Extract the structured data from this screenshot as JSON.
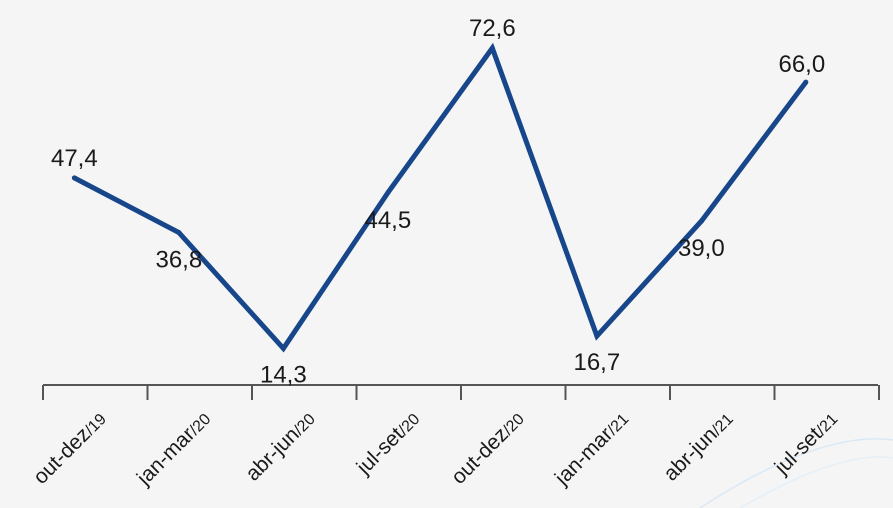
{
  "chart_data": {
    "type": "line",
    "categories": [
      {
        "main": "out-dez",
        "suffix": "/19"
      },
      {
        "main": "jan-mar",
        "suffix": "/20"
      },
      {
        "main": "abr-jun",
        "suffix": "/20"
      },
      {
        "main": "jul-set",
        "suffix": "/20"
      },
      {
        "main": "out-dez",
        "suffix": "/20"
      },
      {
        "main": "jan-mar",
        "suffix": "/21"
      },
      {
        "main": "abr-jun",
        "suffix": "/21"
      },
      {
        "main": "jul-set",
        "suffix": "/21"
      }
    ],
    "series": [
      {
        "values": [
          47.4,
          36.8,
          14.3,
          44.5,
          72.6,
          16.7,
          39.0,
          66.0
        ],
        "labels": [
          "47,4",
          "36,8",
          "14,3",
          "44,5",
          "72,6",
          "16,7",
          "39,0",
          "66,0"
        ],
        "color": "#17478a"
      }
    ],
    "title": "",
    "xlabel": "",
    "ylabel": "",
    "ylim": [
      0,
      80
    ],
    "grid": false,
    "legend": "none"
  }
}
